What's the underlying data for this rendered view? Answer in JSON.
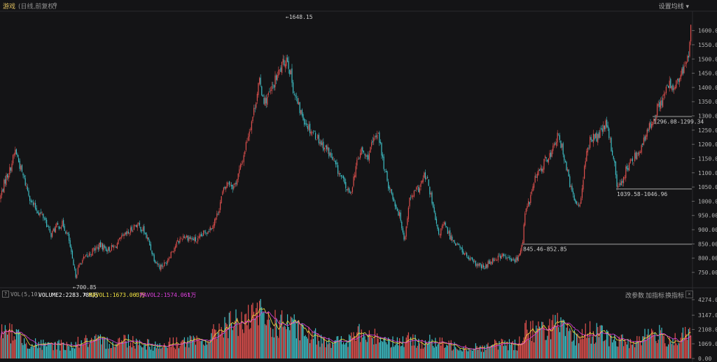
{
  "header": {
    "name": "游戏",
    "mode": "(日线,前复权)",
    "gear_icon": "gear-icon",
    "ma_setting": "设置均线 ▾"
  },
  "volume_header": {
    "help": "?",
    "indicator": "VOL(5,10)",
    "volume": "VOLUME2:2283.789万",
    "mavol1": "MAVOL1:1673.063万",
    "mavol2": "MAVOL2:1574.061万",
    "volume_color": "#ffffff",
    "mavol1_color": "#f0e040",
    "mavol2_color": "#e040e0",
    "up_arrow": "↑",
    "change_params": "改参数",
    "add_indicator": "加指标",
    "switch_indicator": "换指标",
    "close": "×"
  },
  "colors": {
    "up": "#e0504e",
    "down": "#3ec0c8",
    "background": "#141416",
    "grid": "#2a2a2e",
    "level_line": "#707070"
  },
  "chart_data": [
    {
      "type": "candlestick",
      "title": "",
      "yaxis_ticks": [
        "1600.00",
        "1550.00",
        "1500.00",
        "1450.00",
        "1400.00",
        "1350.00",
        "1300.00",
        "1250.00",
        "1200.00",
        "1150.00",
        "1100.00",
        "1050.00",
        "1000.00",
        "950.00",
        "900.00",
        "850.00",
        "800.00",
        "750.00"
      ],
      "ylim": [
        718,
        1668
      ],
      "trend_close": [
        [
          0,
          1010
        ],
        [
          8,
          1080
        ],
        [
          14,
          1110
        ],
        [
          22,
          1180
        ],
        [
          30,
          1110
        ],
        [
          38,
          1050
        ],
        [
          46,
          990
        ],
        [
          56,
          960
        ],
        [
          64,
          940
        ],
        [
          72,
          880
        ],
        [
          80,
          910
        ],
        [
          90,
          920
        ],
        [
          98,
          870
        ],
        [
          104,
          780
        ],
        [
          108,
          740
        ],
        [
          116,
          790
        ],
        [
          124,
          805
        ],
        [
          134,
          830
        ],
        [
          144,
          845
        ],
        [
          154,
          830
        ],
        [
          164,
          840
        ],
        [
          174,
          870
        ],
        [
          184,
          890
        ],
        [
          194,
          920
        ],
        [
          204,
          900
        ],
        [
          212,
          860
        ],
        [
          220,
          800
        ],
        [
          228,
          770
        ],
        [
          236,
          780
        ],
        [
          244,
          820
        ],
        [
          252,
          850
        ],
        [
          262,
          880
        ],
        [
          272,
          870
        ],
        [
          282,
          860
        ],
        [
          292,
          890
        ],
        [
          302,
          910
        ],
        [
          310,
          950
        ],
        [
          318,
          1030
        ],
        [
          326,
          1070
        ],
        [
          334,
          1050
        ],
        [
          340,
          1090
        ],
        [
          346,
          1140
        ],
        [
          354,
          1230
        ],
        [
          362,
          1310
        ],
        [
          370,
          1420
        ],
        [
          378,
          1350
        ],
        [
          386,
          1380
        ],
        [
          394,
          1430
        ],
        [
          402,
          1470
        ],
        [
          410,
          1510
        ],
        [
          414,
          1460
        ],
        [
          420,
          1380
        ],
        [
          428,
          1320
        ],
        [
          436,
          1280
        ],
        [
          444,
          1250
        ],
        [
          452,
          1230
        ],
        [
          460,
          1200
        ],
        [
          468,
          1180
        ],
        [
          476,
          1140
        ],
        [
          484,
          1100
        ],
        [
          492,
          1060
        ],
        [
          500,
          1020
        ],
        [
          508,
          1120
        ],
        [
          516,
          1180
        ],
        [
          524,
          1150
        ],
        [
          532,
          1200
        ],
        [
          540,
          1250
        ],
        [
          546,
          1150
        ],
        [
          552,
          1080
        ],
        [
          560,
          1020
        ],
        [
          566,
          980
        ],
        [
          572,
          940
        ],
        [
          578,
          860
        ],
        [
          584,
          1000
        ],
        [
          592,
          1030
        ],
        [
          600,
          1050
        ],
        [
          606,
          1090
        ],
        [
          612,
          1060
        ],
        [
          618,
          980
        ],
        [
          626,
          880
        ],
        [
          634,
          920
        ],
        [
          642,
          880
        ],
        [
          652,
          850
        ],
        [
          662,
          820
        ],
        [
          672,
          790
        ],
        [
          682,
          775
        ],
        [
          692,
          765
        ],
        [
          700,
          790
        ],
        [
          708,
          800
        ],
        [
          716,
          810
        ],
        [
          724,
          800
        ],
        [
          732,
          790
        ],
        [
          740,
          800
        ],
        [
          746,
          850
        ],
        [
          750,
          960
        ],
        [
          756,
          1000
        ],
        [
          764,
          1080
        ],
        [
          772,
          1110
        ],
        [
          780,
          1150
        ],
        [
          788,
          1170
        ],
        [
          796,
          1230
        ],
        [
          804,
          1180
        ],
        [
          812,
          1080
        ],
        [
          820,
          1000
        ],
        [
          828,
          990
        ],
        [
          836,
          1140
        ],
        [
          844,
          1230
        ],
        [
          852,
          1220
        ],
        [
          860,
          1250
        ],
        [
          866,
          1270
        ],
        [
          872,
          1200
        ],
        [
          878,
          1130
        ],
        [
          882,
          1040
        ],
        [
          888,
          1070
        ],
        [
          894,
          1110
        ],
        [
          902,
          1140
        ],
        [
          910,
          1170
        ],
        [
          918,
          1200
        ],
        [
          926,
          1250
        ],
        [
          932,
          1290
        ],
        [
          940,
          1330
        ],
        [
          948,
          1370
        ],
        [
          956,
          1410
        ],
        [
          964,
          1400
        ],
        [
          972,
          1440
        ],
        [
          978,
          1470
        ],
        [
          984,
          1530
        ],
        [
          987,
          1620
        ]
      ],
      "annotations": [
        {
          "text": "←1648.15",
          "value": 1648.15,
          "x_index": 410,
          "kind": "high"
        },
        {
          "text": "←700.85",
          "value": 700.85,
          "x_index": 106,
          "kind": "low"
        },
        {
          "text": "1296.08-1299.34",
          "value": 1297.7,
          "x_start": 932,
          "kind": "gap"
        },
        {
          "text": "1039.58-1046.96",
          "value": 1043.3,
          "x_start": 880,
          "kind": "gap"
        },
        {
          "text": "845.46-852.85",
          "value": 849.2,
          "x_start": 746,
          "kind": "gap"
        }
      ]
    },
    {
      "type": "bar",
      "title": "VOL(5,10)",
      "unit": "万",
      "yaxis_ticks": [
        "4274.00",
        "3147.00",
        "2108.00",
        "1069.00",
        "0.00"
      ],
      "ylim": [
        0,
        4274
      ],
      "series": [
        {
          "name": "VOLUME2",
          "last": 2283.789
        },
        {
          "name": "MAVOL1",
          "last": 1673.063
        },
        {
          "name": "MAVOL2",
          "last": 1574.061
        }
      ],
      "volume_envelope": [
        [
          0,
          1900
        ],
        [
          10,
          1800
        ],
        [
          20,
          2000
        ],
        [
          30,
          1500
        ],
        [
          40,
          1200
        ],
        [
          50,
          1100
        ],
        [
          60,
          1000
        ],
        [
          70,
          900
        ],
        [
          80,
          1100
        ],
        [
          90,
          1000
        ],
        [
          100,
          900
        ],
        [
          110,
          1200
        ],
        [
          120,
          1300
        ],
        [
          130,
          1200
        ],
        [
          140,
          1300
        ],
        [
          150,
          1200
        ],
        [
          160,
          1200
        ],
        [
          170,
          1300
        ],
        [
          180,
          1400
        ],
        [
          190,
          1300
        ],
        [
          200,
          1200
        ],
        [
          210,
          1100
        ],
        [
          220,
          1000
        ],
        [
          230,
          900
        ],
        [
          240,
          1100
        ],
        [
          250,
          1200
        ],
        [
          260,
          1200
        ],
        [
          270,
          1300
        ],
        [
          280,
          1200
        ],
        [
          290,
          1300
        ],
        [
          300,
          1500
        ],
        [
          310,
          2100
        ],
        [
          320,
          2600
        ],
        [
          330,
          2500
        ],
        [
          340,
          2800
        ],
        [
          350,
          2700
        ],
        [
          360,
          2900
        ],
        [
          370,
          3300
        ],
        [
          380,
          2900
        ],
        [
          390,
          2500
        ],
        [
          400,
          2600
        ],
        [
          410,
          2700
        ],
        [
          420,
          2300
        ],
        [
          430,
          2000
        ],
        [
          440,
          1700
        ],
        [
          450,
          1600
        ],
        [
          460,
          1500
        ],
        [
          470,
          1400
        ],
        [
          480,
          1300
        ],
        [
          490,
          1200
        ],
        [
          500,
          1400
        ],
        [
          510,
          1900
        ],
        [
          520,
          1700
        ],
        [
          530,
          1500
        ],
        [
          540,
          1700
        ],
        [
          550,
          1500
        ],
        [
          560,
          1300
        ],
        [
          570,
          1200
        ],
        [
          580,
          1400
        ],
        [
          590,
          1300
        ],
        [
          600,
          1200
        ],
        [
          610,
          1300
        ],
        [
          620,
          1200
        ],
        [
          630,
          1100
        ],
        [
          640,
          1000
        ],
        [
          650,
          1000
        ],
        [
          660,
          900
        ],
        [
          670,
          800
        ],
        [
          680,
          900
        ],
        [
          690,
          800
        ],
        [
          700,
          900
        ],
        [
          710,
          1100
        ],
        [
          720,
          1200
        ],
        [
          730,
          1000
        ],
        [
          740,
          1000
        ],
        [
          750,
          2400
        ],
        [
          760,
          2100
        ],
        [
          770,
          2000
        ],
        [
          780,
          2200
        ],
        [
          790,
          2600
        ],
        [
          800,
          2300
        ],
        [
          810,
          1900
        ],
        [
          820,
          1500
        ],
        [
          830,
          1800
        ],
        [
          840,
          2000
        ],
        [
          850,
          1900
        ],
        [
          860,
          1800
        ],
        [
          870,
          1500
        ],
        [
          880,
          1300
        ],
        [
          890,
          1300
        ],
        [
          900,
          1200
        ],
        [
          910,
          1400
        ],
        [
          920,
          1700
        ],
        [
          930,
          1900
        ],
        [
          940,
          1800
        ],
        [
          950,
          1500
        ],
        [
          960,
          1400
        ],
        [
          970,
          1500
        ],
        [
          980,
          1700
        ],
        [
          987,
          2280
        ]
      ]
    }
  ]
}
